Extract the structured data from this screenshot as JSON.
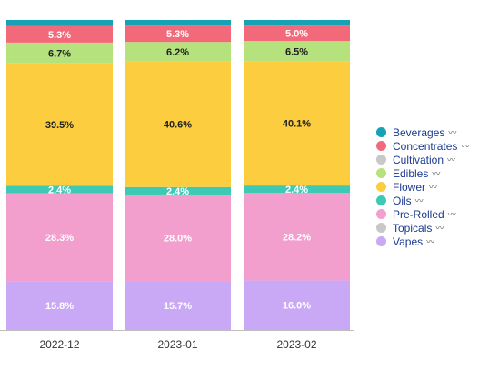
{
  "chart_data": {
    "type": "bar",
    "stacked": "percent",
    "categories": [
      "2022-12",
      "2023-01",
      "2023-02"
    ],
    "series": [
      {
        "name": "Vapes",
        "color": "#c9a9f5",
        "values": [
          15.8,
          15.7,
          16.0
        ],
        "labels": [
          "15.8%",
          "15.7%",
          "16.0%"
        ]
      },
      {
        "name": "Topicals",
        "color": "#c8c8c8",
        "values": [
          0,
          0,
          0
        ],
        "labels": [
          "",
          "",
          ""
        ]
      },
      {
        "name": "Pre-Rolled",
        "color": "#f29fce",
        "values": [
          28.3,
          28.0,
          28.2
        ],
        "labels": [
          "28.3%",
          "28.0%",
          "28.2%"
        ]
      },
      {
        "name": "Oils",
        "color": "#3ec9b4",
        "values": [
          2.4,
          2.4,
          2.4
        ],
        "labels": [
          "2.4%",
          "2.4%",
          "2.4%"
        ]
      },
      {
        "name": "Flower",
        "color": "#fbcd3f",
        "values": [
          39.5,
          40.6,
          40.1
        ],
        "labels": [
          "39.5%",
          "40.6%",
          "40.1%"
        ]
      },
      {
        "name": "Edibles",
        "color": "#b6e27e",
        "values": [
          6.7,
          6.2,
          6.5
        ],
        "labels": [
          "6.7%",
          "6.2%",
          "6.5%"
        ]
      },
      {
        "name": "Cultivation",
        "color": "#c8c8c8",
        "values": [
          0,
          0,
          0
        ],
        "labels": [
          "",
          "",
          ""
        ]
      },
      {
        "name": "Concentrates",
        "color": "#f26a7a",
        "values": [
          5.3,
          5.3,
          5.0
        ],
        "labels": [
          "5.3%",
          "5.3%",
          "5.0%"
        ]
      },
      {
        "name": "Beverages",
        "color": "#16a1b5",
        "values": [
          2.0,
          1.8,
          1.8
        ],
        "labels": [
          "",
          "",
          ""
        ]
      }
    ],
    "legend_order": [
      "Beverages",
      "Concentrates",
      "Cultivation",
      "Edibles",
      "Flower",
      "Oils",
      "Pre-Rolled",
      "Topicals",
      "Vapes"
    ],
    "legend_placement": "right",
    "grid": false,
    "ylim": [
      0,
      100
    ]
  }
}
